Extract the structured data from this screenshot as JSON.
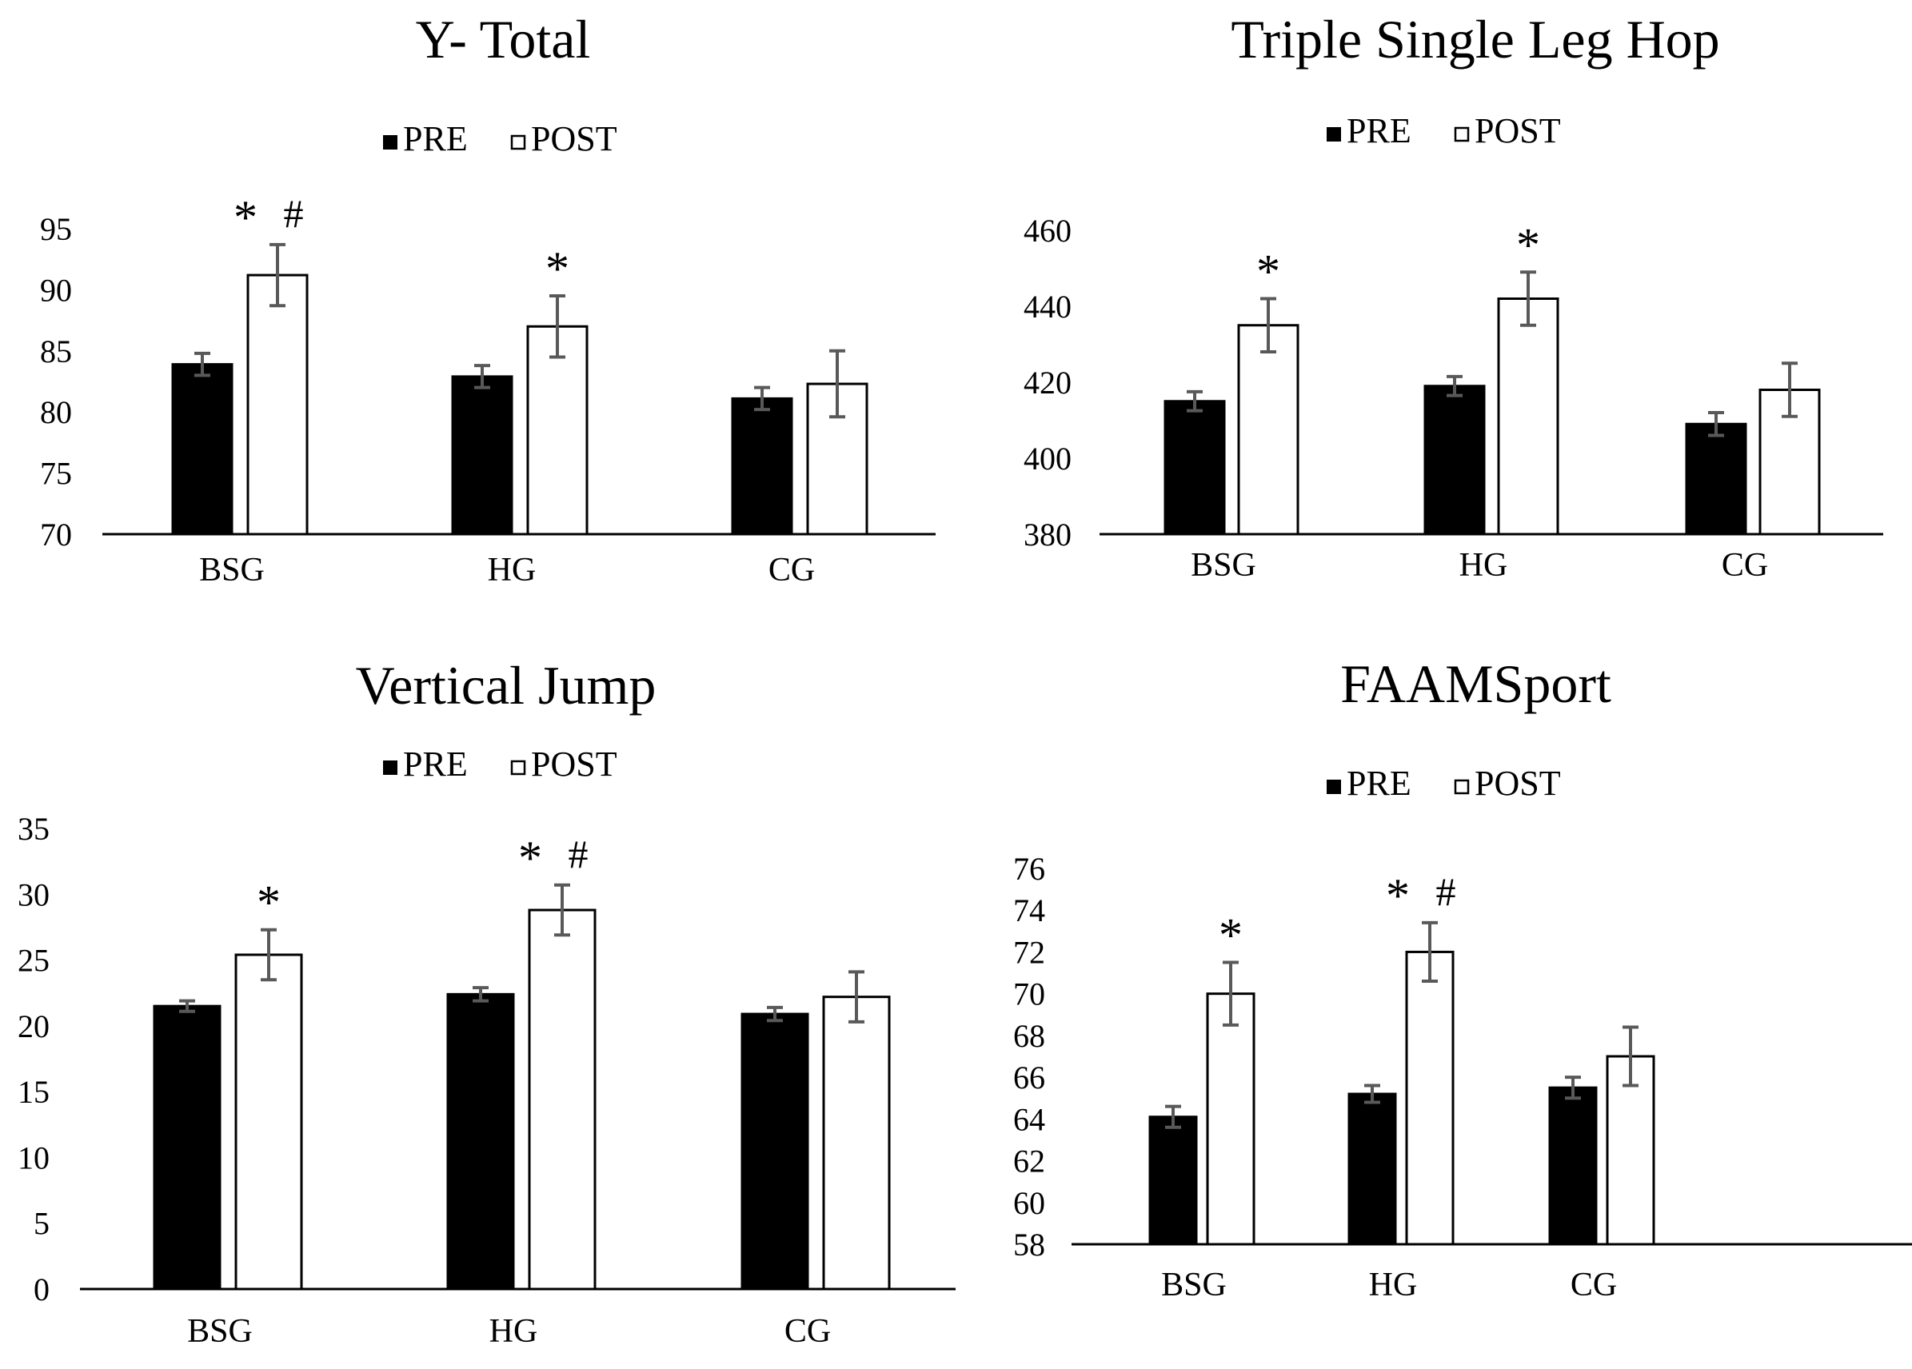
{
  "legend": {
    "pre_label": "PRE",
    "post_label": "POST"
  },
  "colors": {
    "pre": "#000000",
    "post": "#ffffff",
    "error_bar": "#595959",
    "axis": "#000000"
  },
  "chart_data": [
    {
      "type": "bar",
      "title": "Y- Total",
      "categories": [
        "BSG",
        "HG",
        "CG"
      ],
      "series": [
        {
          "name": "PRE",
          "values": [
            83.9,
            82.9,
            81.1
          ],
          "errors": [
            0.9,
            0.9,
            0.9
          ]
        },
        {
          "name": "POST",
          "values": [
            91.2,
            87.0,
            82.3
          ],
          "errors": [
            2.5,
            2.5,
            2.7
          ]
        }
      ],
      "ylim": [
        70,
        95
      ],
      "yticks": [
        70,
        75,
        80,
        85,
        90,
        95
      ],
      "xlabel": "",
      "ylabel": "",
      "annotations": [
        {
          "category": "BSG",
          "text": "*  #"
        },
        {
          "category": "HG",
          "text": "*"
        }
      ]
    },
    {
      "type": "bar",
      "title": "Triple Single Leg Hop",
      "categories": [
        "BSG",
        "HG",
        "CG"
      ],
      "series": [
        {
          "name": "PRE",
          "values": [
            415,
            419,
            409
          ],
          "errors": [
            2.5,
            2.5,
            3
          ]
        },
        {
          "name": "POST",
          "values": [
            435,
            442,
            418
          ],
          "errors": [
            7,
            7,
            7
          ]
        }
      ],
      "ylim": [
        380,
        460
      ],
      "yticks": [
        380,
        400,
        420,
        440,
        460
      ],
      "xlabel": "",
      "ylabel": "",
      "annotations": [
        {
          "category": "BSG",
          "text": "*"
        },
        {
          "category": "HG",
          "text": "*"
        }
      ]
    },
    {
      "type": "bar",
      "title": "Vertical Jump",
      "categories": [
        "BSG",
        "HG",
        "CG"
      ],
      "series": [
        {
          "name": "PRE",
          "values": [
            21.5,
            22.4,
            20.9
          ],
          "errors": [
            0.4,
            0.5,
            0.5
          ]
        },
        {
          "name": "POST",
          "values": [
            25.4,
            28.8,
            22.2
          ],
          "errors": [
            1.9,
            1.9,
            1.9
          ]
        }
      ],
      "ylim": [
        0,
        35
      ],
      "yticks": [
        0,
        5,
        10,
        15,
        20,
        25,
        30,
        35
      ],
      "xlabel": "",
      "ylabel": "",
      "annotations": [
        {
          "category": "BSG",
          "text": "*"
        },
        {
          "category": "HG",
          "text": "*  #"
        }
      ]
    },
    {
      "type": "bar",
      "title": "FAAMSport",
      "categories": [
        "BSG",
        "HG",
        "CG"
      ],
      "series": [
        {
          "name": "PRE",
          "values": [
            64.1,
            65.2,
            65.5
          ],
          "errors": [
            0.5,
            0.4,
            0.5
          ]
        },
        {
          "name": "POST",
          "values": [
            70.0,
            72.0,
            67.0
          ],
          "errors": [
            1.5,
            1.4,
            1.4
          ]
        }
      ],
      "ylim": [
        58,
        76
      ],
      "yticks": [
        58,
        60,
        62,
        64,
        66,
        68,
        70,
        72,
        74,
        76
      ],
      "xlabel": "",
      "ylabel": "",
      "annotations": [
        {
          "category": "BSG",
          "text": "*"
        },
        {
          "category": "HG",
          "text": "*  #"
        }
      ]
    }
  ]
}
